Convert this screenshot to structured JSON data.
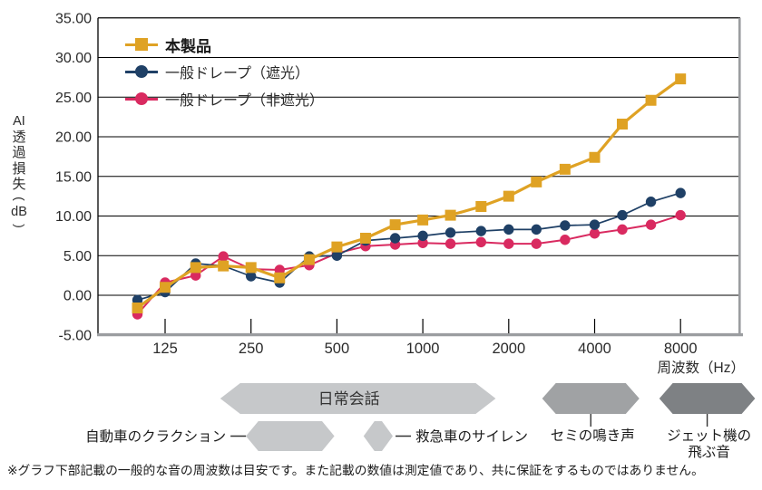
{
  "chart_data": {
    "type": "line",
    "xscale": "log2",
    "grid": true,
    "legend_position": "top-left",
    "ylim": [
      -5,
      35
    ],
    "y_axis_label": "AI透過損失",
    "y_axis_unit": "dB",
    "x_unit_label": "周波数（Hz）",
    "y_ticks": [
      "35.00",
      "30.00",
      "25.00",
      "20.00",
      "15.00",
      "10.00",
      "5.00",
      "0.00",
      "-5.00"
    ],
    "x_ticks": [
      125,
      250,
      500,
      1000,
      2000,
      4000,
      8000
    ],
    "x_tick_labels": [
      "125",
      "250",
      "500",
      "1000",
      "2000",
      "4000",
      "8000"
    ],
    "frequencies_hz": [
      100,
      125,
      160,
      200,
      250,
      315,
      400,
      500,
      630,
      800,
      1000,
      1250,
      1600,
      2000,
      2500,
      3150,
      4000,
      5000,
      6300,
      8000
    ],
    "series": [
      {
        "name": "本製品",
        "color": "#dfa224",
        "marker": "square",
        "emphasized": true,
        "values": [
          -1.6,
          1.0,
          3.5,
          3.7,
          3.5,
          2.2,
          4.5,
          6.1,
          7.2,
          8.9,
          9.5,
          10.1,
          11.2,
          12.5,
          14.3,
          15.9,
          17.4,
          21.6,
          24.6,
          27.3
        ]
      },
      {
        "name": "一般ドレープ（遮光）",
        "color": "#1f4066",
        "marker": "circle",
        "emphasized": false,
        "values": [
          -0.6,
          0.4,
          4.0,
          3.7,
          2.4,
          1.6,
          4.9,
          5.0,
          6.9,
          7.2,
          7.5,
          7.9,
          8.1,
          8.3,
          8.3,
          8.8,
          8.9,
          10.1,
          11.8,
          12.9
        ]
      },
      {
        "name": "一般ドレープ（非遮光）",
        "color": "#d92a60",
        "marker": "circle",
        "emphasized": false,
        "values": [
          -2.4,
          1.6,
          2.5,
          4.9,
          3.3,
          3.2,
          3.8,
          5.3,
          6.2,
          6.4,
          6.6,
          6.5,
          6.7,
          6.5,
          6.5,
          7.0,
          7.8,
          8.3,
          8.9,
          10.1
        ]
      }
    ],
    "sound_bands": [
      {
        "label": "日常会話",
        "from_hz": 195,
        "to_hz": 1800,
        "row": 1,
        "color": "#c6c8ca",
        "label_pos": "inside"
      },
      {
        "label": "セミの鳴き声",
        "from_hz": 2620,
        "to_hz": 5740,
        "row": 1,
        "color": "#a0a2a4",
        "label_pos": "below"
      },
      {
        "label": "ジェット機の飛ぶ音",
        "label_lines": [
          "ジェット機の",
          "飛ぶ音"
        ],
        "from_hz": 6740,
        "to_hz": 14600,
        "row": 1,
        "color": "#7e8184",
        "label_pos": "below"
      },
      {
        "label": "自動車のクラクション",
        "from_hz": 240,
        "to_hz": 490,
        "row": 2,
        "color": "#c6c8ca",
        "label_pos": "left"
      },
      {
        "label": "救急車のサイレン",
        "from_hz": 620,
        "to_hz": 785,
        "row": 2,
        "color": "#c6c8ca",
        "label_pos": "right"
      }
    ],
    "colors": {
      "grid": "#000000",
      "axis_gray": "#9b9da0",
      "text": "#2b2b2b"
    }
  },
  "footnote": "※グラフ下部記載の一般的な音の周波数は目安です。また記載の数値は測定値であり、共に保証をするものではありません。"
}
